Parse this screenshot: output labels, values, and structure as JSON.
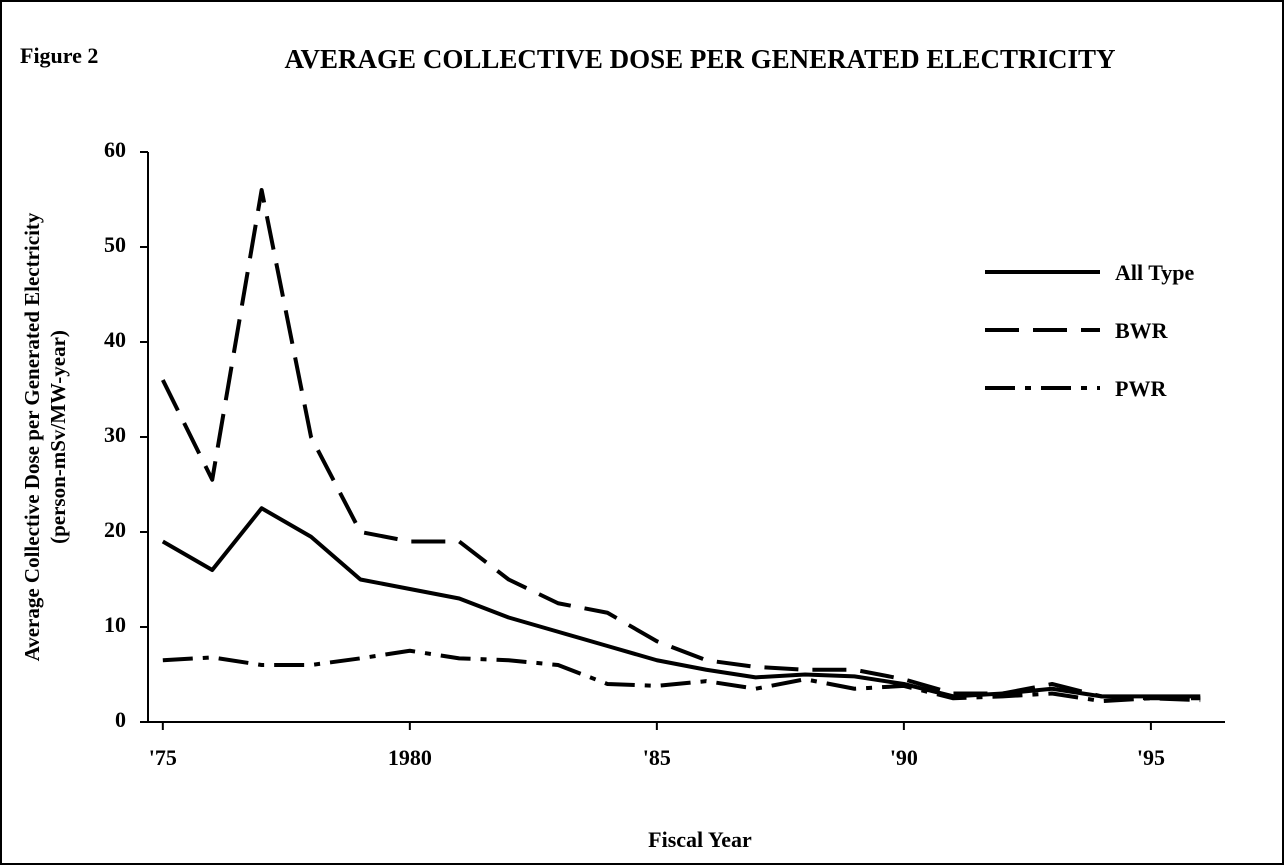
{
  "chart_data": {
    "type": "line",
    "figure_label": "Figure 2",
    "title": "AVERAGE COLLECTIVE DOSE PER GENERATED ELECTRICITY",
    "y_label": [
      "Average Collective Dose per Generated Electricity",
      "(person-mSv/MW-year)"
    ],
    "x_label": "Fiscal Year",
    "x": [
      1975,
      1976,
      1977,
      1978,
      1979,
      1980,
      1981,
      1982,
      1983,
      1984,
      1985,
      1986,
      1987,
      1988,
      1989,
      1990,
      1991,
      1992,
      1993,
      1994,
      1995,
      1996
    ],
    "series": [
      {
        "name": "All Type",
        "color": "#000000",
        "dash": "none",
        "values": [
          19,
          16,
          22.5,
          19.5,
          15,
          14,
          13,
          11,
          9.5,
          8,
          6.5,
          5.5,
          4.7,
          5,
          4.8,
          4,
          2.7,
          3,
          3.5,
          2.7,
          2.7,
          2.7
        ]
      },
      {
        "name": "BWR",
        "color": "#000000",
        "dash": "34,14",
        "values": [
          36,
          25.5,
          56,
          30,
          20,
          19,
          19,
          15,
          12.5,
          11.5,
          8.5,
          6.5,
          5.8,
          5.5,
          5.5,
          4.5,
          3,
          3,
          4,
          2.7,
          2.5,
          2.5
        ]
      },
      {
        "name": "PWR",
        "color": "#000000",
        "dash": "30,10,6,10",
        "values": [
          6.5,
          6.8,
          6,
          6,
          6.7,
          7.5,
          6.7,
          6.5,
          6,
          4,
          3.8,
          4.3,
          3.5,
          4.5,
          3.5,
          3.8,
          2.5,
          2.7,
          3,
          2.2,
          2.5,
          2.3
        ]
      }
    ],
    "xlim": [
      1974.7,
      1996.5
    ],
    "xticks": [
      {
        "value": 1975,
        "label": "'75"
      },
      1980,
      {
        "value": 1985,
        "label": "'85"
      },
      {
        "value": 1990,
        "label": "'90"
      },
      {
        "value": 1995,
        "label": "'95"
      }
    ],
    "ylim": [
      0,
      60
    ],
    "yticks": [
      0,
      10,
      20,
      30,
      40,
      50,
      60
    ],
    "grid": false,
    "legend": "right"
  }
}
